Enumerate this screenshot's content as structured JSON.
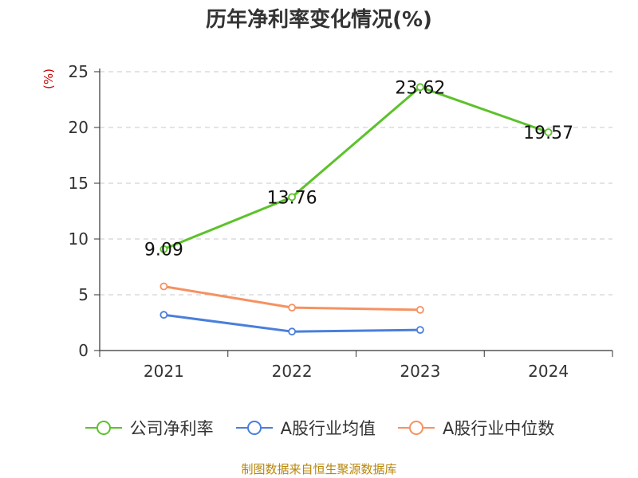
{
  "chart_data": {
    "type": "line",
    "title": "历年净利率变化情况(%)",
    "y_unit_label": "(%)",
    "categories": [
      "2021",
      "2022",
      "2023",
      "2024"
    ],
    "ylim": [
      0,
      25
    ],
    "yticks": [
      0,
      5,
      10,
      15,
      20,
      25
    ],
    "grid": true,
    "legend_position": "bottom",
    "series": [
      {
        "name": "公司净利率",
        "color": "#5cc22b",
        "values": [
          9.09,
          13.76,
          23.62,
          19.57
        ],
        "show_labels": true
      },
      {
        "name": "A股行业均值",
        "color": "#4a7fdb",
        "values": [
          3.2,
          1.7,
          1.85,
          null
        ],
        "show_labels": false
      },
      {
        "name": "A股行业中位数",
        "color": "#f59262",
        "values": [
          5.75,
          3.85,
          3.65,
          null
        ],
        "show_labels": false
      }
    ],
    "data_labels": [
      "9.09",
      "13.76",
      "23.62",
      "19.57"
    ]
  },
  "footer": {
    "source_text": "制图数据来自恒生聚源数据库"
  }
}
